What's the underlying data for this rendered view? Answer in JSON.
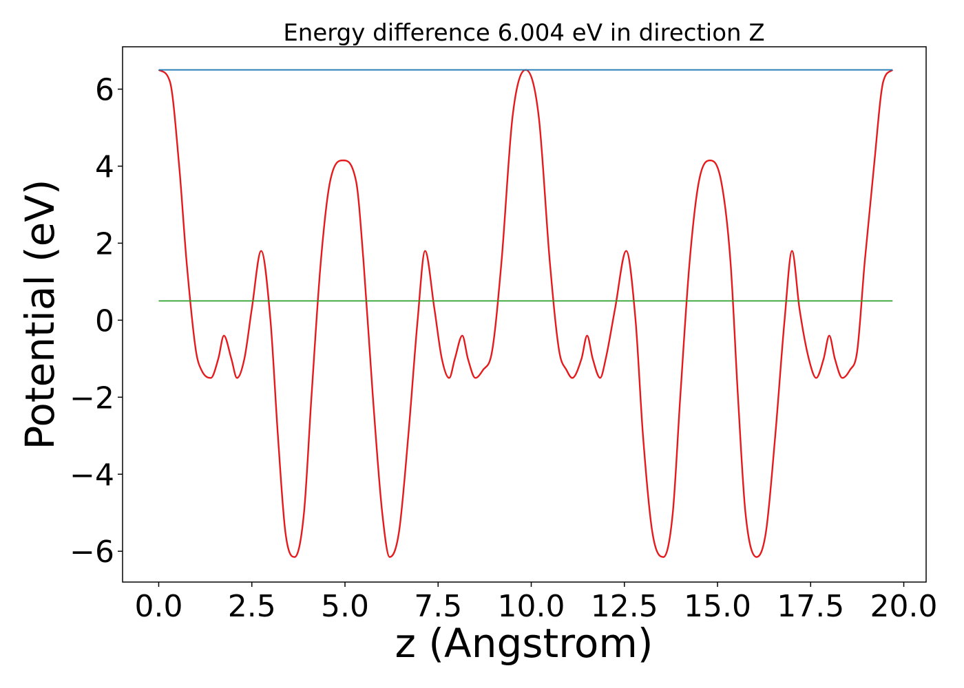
{
  "chart_data": {
    "type": "line",
    "title": "Energy difference 6.004 eV in direction Z",
    "xlabel": "z (Angstrom)",
    "ylabel": "Potential (eV)",
    "xlim": [
      -0.97,
      20.6
    ],
    "ylim": [
      -6.8,
      7.1
    ],
    "xticks": [
      0.0,
      2.5,
      5.0,
      7.5,
      10.0,
      12.5,
      15.0,
      17.5,
      20.0
    ],
    "xtick_labels": [
      "0.0",
      "2.5",
      "5.0",
      "7.5",
      "10.0",
      "12.5",
      "15.0",
      "17.5",
      "20.0"
    ],
    "yticks": [
      -6,
      -4,
      -2,
      0,
      2,
      4,
      6
    ],
    "ytick_labels": [
      "−6",
      "−4",
      "−2",
      "0",
      "2",
      "4",
      "6"
    ],
    "grid": false,
    "legend": "none",
    "series": [
      {
        "color": "#e41a1c",
        "x": [
          0.0,
          0.3,
          0.55,
          0.75,
          1.0,
          1.15,
          1.4,
          1.6,
          1.75,
          1.95,
          2.1,
          2.3,
          2.5,
          2.75,
          3.0,
          3.2,
          3.4,
          3.65,
          3.9,
          4.1,
          4.35,
          4.6,
          4.95,
          5.3,
          5.5,
          5.75,
          6.0,
          6.2,
          6.45,
          6.7,
          6.95,
          7.15,
          7.4,
          7.6,
          7.8,
          7.95,
          8.15,
          8.3,
          8.5,
          8.7,
          8.95,
          9.2,
          9.5,
          9.85,
          10.2,
          10.5,
          10.75,
          10.95,
          11.1,
          11.35,
          11.5,
          11.65,
          11.85,
          12.0,
          12.25,
          12.55,
          12.8,
          13.0,
          13.25,
          13.55,
          13.8,
          14.0,
          14.25,
          14.5,
          14.8,
          15.1,
          15.35,
          15.55,
          15.75,
          16.05,
          16.3,
          16.55,
          16.8,
          17.0,
          17.2,
          17.45,
          17.65,
          17.85,
          18.0,
          18.15,
          18.35,
          18.55,
          18.75,
          18.95,
          19.2,
          19.45,
          19.7
        ],
        "y": [
          6.5,
          6.2,
          4.0,
          1.5,
          -0.8,
          -1.3,
          -1.5,
          -1.0,
          -0.4,
          -1.0,
          -1.5,
          -1.0,
          0.3,
          1.8,
          0.0,
          -3.0,
          -5.5,
          -6.15,
          -5.0,
          -2.0,
          1.5,
          3.6,
          4.15,
          3.6,
          1.5,
          -2.0,
          -5.0,
          -6.15,
          -5.5,
          -3.0,
          0.0,
          1.8,
          0.3,
          -1.0,
          -1.5,
          -1.0,
          -0.4,
          -1.0,
          -1.5,
          -1.3,
          -0.8,
          1.5,
          5.3,
          6.5,
          5.3,
          1.5,
          -0.8,
          -1.3,
          -1.5,
          -1.0,
          -0.4,
          -1.0,
          -1.5,
          -1.0,
          0.3,
          1.8,
          0.0,
          -3.0,
          -5.5,
          -6.15,
          -5.0,
          -2.0,
          1.5,
          3.6,
          4.15,
          3.6,
          1.5,
          -2.0,
          -5.0,
          -6.15,
          -5.5,
          -3.0,
          0.0,
          1.8,
          0.3,
          -1.0,
          -1.5,
          -1.0,
          -0.4,
          -1.0,
          -1.5,
          -1.3,
          -0.8,
          1.5,
          4.0,
          6.2,
          6.5
        ]
      },
      {
        "color": "#1f77b4",
        "x": [
          0.0,
          19.7
        ],
        "y": [
          6.5,
          6.5
        ]
      },
      {
        "color": "#2ca02c",
        "x": [
          0.0,
          19.7
        ],
        "y": [
          0.5,
          0.5
        ]
      }
    ]
  }
}
